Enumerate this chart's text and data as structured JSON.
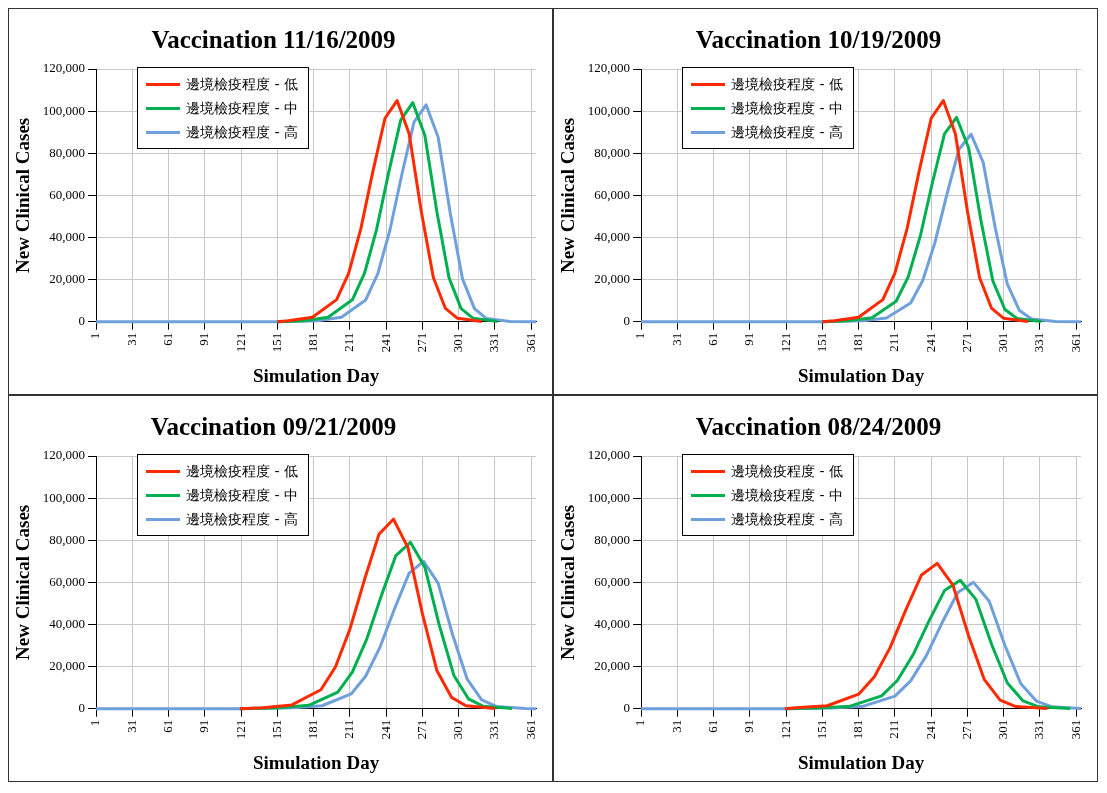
{
  "chart_data": [
    {
      "type": "line",
      "title": "Vaccination 11/16/2009",
      "xlabel": "Simulation Day",
      "ylabel": "New Clinical Cases",
      "xlim": [
        1,
        365
      ],
      "xticks": [
        1,
        31,
        61,
        91,
        121,
        151,
        181,
        211,
        241,
        271,
        301,
        331,
        361
      ],
      "ylim": [
        0,
        120000
      ],
      "yticks": [
        {
          "value": 0,
          "label": "0"
        },
        {
          "value": 20000,
          "label": "20,000"
        },
        {
          "value": 40000,
          "label": "40,000"
        },
        {
          "value": 60000,
          "label": "60,000"
        },
        {
          "value": 80000,
          "label": "80,000"
        },
        {
          "value": 100000,
          "label": "100,000"
        },
        {
          "value": 120000,
          "label": "120,000"
        }
      ],
      "grid": true,
      "legend": "top left",
      "marker": "none",
      "line_style": "solid",
      "series": [
        {
          "name": "邊境檢疫程度 - 低",
          "color": "#ff2a00",
          "x": [
            151,
            160,
            180,
            200,
            210,
            220,
            230,
            240,
            250,
            260,
            270,
            280,
            290,
            300,
            320
          ],
          "values": [
            0,
            500,
            2100,
            10500,
            23100,
            44100,
            71400,
            96600,
            105000,
            89300,
            52500,
            21000,
            6300,
            1600,
            100
          ]
        },
        {
          "name": "邊境檢疫程度 - 中",
          "color": "#00b050",
          "x": [
            151,
            173,
            193,
            213,
            223,
            233,
            243,
            253,
            263,
            273,
            283,
            293,
            303,
            313,
            333
          ],
          "values": [
            0,
            500,
            2100,
            10400,
            22900,
            43700,
            70700,
            95700,
            104000,
            88400,
            52000,
            20800,
            6200,
            1600,
            100
          ]
        },
        {
          "name": "邊境檢疫程度 - 高",
          "color": "#6fa0dc",
          "x": [
            1,
            151,
            184,
            204,
            224,
            234,
            244,
            254,
            264,
            274,
            284,
            294,
            304,
            314,
            324,
            344,
            365
          ],
          "values": [
            0,
            0,
            500,
            2100,
            10300,
            22700,
            43300,
            70000,
            94800,
            103000,
            87600,
            51500,
            20600,
            6200,
            1500,
            100,
            0
          ]
        }
      ]
    },
    {
      "type": "line",
      "title": "Vaccination 10/19/2009",
      "xlabel": "Simulation Day",
      "ylabel": "New Clinical Cases",
      "xlim": [
        1,
        365
      ],
      "xticks": [
        1,
        31,
        61,
        91,
        121,
        151,
        181,
        211,
        241,
        271,
        301,
        331,
        361
      ],
      "ylim": [
        0,
        120000
      ],
      "yticks": [
        {
          "value": 0,
          "label": "0"
        },
        {
          "value": 20000,
          "label": "20,000"
        },
        {
          "value": 40000,
          "label": "40,000"
        },
        {
          "value": 60000,
          "label": "60,000"
        },
        {
          "value": 80000,
          "label": "80,000"
        },
        {
          "value": 100000,
          "label": "100,000"
        },
        {
          "value": 120000,
          "label": "120,000"
        }
      ],
      "grid": true,
      "legend": "top left",
      "marker": "none",
      "line_style": "solid",
      "series": [
        {
          "name": "邊境檢疫程度 - 低",
          "color": "#ff2a00",
          "x": [
            151,
            161,
            181,
            201,
            211,
            221,
            231,
            241,
            251,
            261,
            271,
            281,
            291,
            301,
            321
          ],
          "values": [
            0,
            500,
            2100,
            10500,
            23100,
            44100,
            71400,
            96600,
            105000,
            89300,
            52500,
            21000,
            6300,
            1600,
            100
          ]
        },
        {
          "name": "邊境檢疫程度 - 中",
          "color": "#00b050",
          "x": [
            151,
            172,
            192,
            212,
            222,
            232,
            242,
            252,
            262,
            272,
            282,
            292,
            302,
            312,
            332
          ],
          "values": [
            0,
            500,
            1900,
            9700,
            21300,
            40700,
            66000,
            89200,
            97000,
            82500,
            48500,
            19400,
            5800,
            1500,
            100
          ]
        },
        {
          "name": "邊境檢疫程度 - 高",
          "color": "#6fa0dc",
          "x": [
            1,
            151,
            184,
            204,
            224,
            234,
            244,
            254,
            264,
            274,
            284,
            294,
            304,
            314,
            324,
            344,
            365
          ],
          "values": [
            0,
            0,
            400,
            1800,
            8900,
            19600,
            37400,
            60500,
            81900,
            89000,
            75700,
            44500,
            17800,
            5300,
            1300,
            100,
            0
          ]
        }
      ]
    },
    {
      "type": "line",
      "title": "Vaccination 09/21/2009",
      "xlabel": "Simulation Day",
      "ylabel": "New Clinical Cases",
      "xlim": [
        1,
        365
      ],
      "xticks": [
        1,
        31,
        61,
        91,
        121,
        151,
        181,
        211,
        241,
        271,
        301,
        331,
        361
      ],
      "ylim": [
        0,
        120000
      ],
      "yticks": [
        {
          "value": 0,
          "label": "0"
        },
        {
          "value": 20000,
          "label": "20,000"
        },
        {
          "value": 40000,
          "label": "40,000"
        },
        {
          "value": 60000,
          "label": "60,000"
        },
        {
          "value": 80000,
          "label": "80,000"
        },
        {
          "value": 100000,
          "label": "100,000"
        },
        {
          "value": 120000,
          "label": "120,000"
        }
      ],
      "grid": true,
      "legend": "top left",
      "marker": "none",
      "line_style": "solid",
      "series": [
        {
          "name": "邊境檢疫程度 - 低",
          "color": "#ff2a00",
          "x": [
            120,
            139,
            163,
            187,
            199,
            211,
            223,
            235,
            247,
            259,
            271,
            283,
            295,
            307,
            331
          ],
          "values": [
            0,
            500,
            1800,
            9000,
            19800,
            37800,
            61200,
            82800,
            90000,
            76500,
            45000,
            18000,
            5400,
            1400,
            100
          ]
        },
        {
          "name": "邊境檢疫程度 - 中",
          "color": "#00b050",
          "x": [
            120,
            153,
            177,
            201,
            213,
            225,
            237,
            249,
            261,
            273,
            285,
            297,
            309,
            321,
            345
          ],
          "values": [
            0,
            400,
            1600,
            7900,
            17400,
            33200,
            53700,
            72700,
            79000,
            67200,
            39500,
            15800,
            4700,
            1200,
            100
          ]
        },
        {
          "name": "邊境檢疫程度 - 高",
          "color": "#6fa0dc",
          "x": [
            1,
            120,
            164,
            188,
            212,
            224,
            236,
            248,
            260,
            272,
            284,
            296,
            308,
            320,
            332,
            356,
            365
          ],
          "values": [
            0,
            0,
            400,
            1400,
            7000,
            15400,
            29400,
            47600,
            64400,
            70000,
            59500,
            35000,
            14000,
            4200,
            1100,
            100,
            0
          ]
        }
      ]
    },
    {
      "type": "line",
      "title": "Vaccination 08/24/2009",
      "xlabel": "Simulation Day",
      "ylabel": "New Clinical Cases",
      "xlim": [
        1,
        365
      ],
      "xticks": [
        1,
        31,
        61,
        91,
        121,
        151,
        181,
        211,
        241,
        271,
        301,
        331,
        361
      ],
      "ylim": [
        0,
        120000
      ],
      "yticks": [
        {
          "value": 0,
          "label": "0"
        },
        {
          "value": 20000,
          "label": "20,000"
        },
        {
          "value": 40000,
          "label": "40,000"
        },
        {
          "value": 60000,
          "label": "60,000"
        },
        {
          "value": 80000,
          "label": "80,000"
        },
        {
          "value": 100000,
          "label": "100,000"
        },
        {
          "value": 120000,
          "label": "120,000"
        }
      ],
      "grid": true,
      "legend": "top left",
      "marker": "none",
      "line_style": "solid",
      "series": [
        {
          "name": "邊境檢疫程度 - 低",
          "color": "#ff2a00",
          "x": [
            120,
            129,
            155,
            181,
            194,
            207,
            220,
            233,
            246,
            259,
            272,
            285,
            298,
            311,
            337
          ],
          "values": [
            0,
            400,
            1400,
            6900,
            15200,
            29000,
            46900,
            63500,
            69000,
            58700,
            34500,
            13800,
            4100,
            1000,
            100
          ]
        },
        {
          "name": "邊境檢疫程度 - 中",
          "color": "#00b050",
          "x": [
            120,
            148,
            174,
            200,
            213,
            226,
            239,
            252,
            265,
            278,
            291,
            304,
            317,
            330,
            356
          ],
          "values": [
            0,
            300,
            1200,
            6100,
            13400,
            25600,
            41500,
            56100,
            61000,
            51900,
            30500,
            12200,
            3700,
            900,
            100
          ]
        },
        {
          "name": "邊境檢疫程度 - 高",
          "color": "#6fa0dc",
          "x": [
            1,
            120,
            159,
            185,
            211,
            224,
            237,
            250,
            263,
            276,
            289,
            302,
            315,
            328,
            341,
            365
          ],
          "values": [
            0,
            0,
            300,
            1200,
            6000,
            13200,
            25200,
            40800,
            55200,
            60000,
            51000,
            30000,
            12000,
            3600,
            900,
            100
          ]
        }
      ]
    }
  ]
}
